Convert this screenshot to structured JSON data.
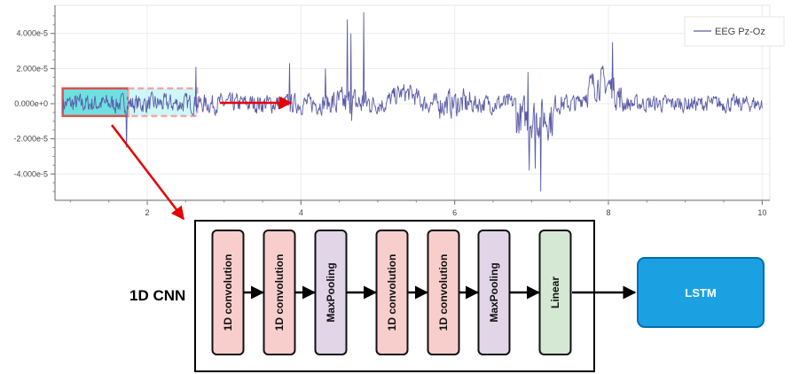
{
  "chart_data": {
    "type": "line",
    "series": [
      {
        "name": "EEG Pz-Oz"
      }
    ],
    "xlim": [
      0.8,
      10.1
    ],
    "ylim": [
      -5.5e-05,
      5.6e-05
    ],
    "x_ticks": [
      2,
      4,
      6,
      8,
      10
    ],
    "x_tick_labels": [
      "2",
      "4",
      "6",
      "8",
      "10"
    ],
    "y_ticks": [
      4e-05,
      2e-05,
      0,
      -2e-05,
      -4e-05
    ],
    "y_tick_labels": [
      "4.000e-5",
      "2.000e-5",
      "0.000e+0",
      "-2.000e-5",
      "-4.000e-5"
    ],
    "grid": true,
    "legend_position": "top-right",
    "line_color": "#5b5ba8",
    "signal_x_range": [
      0.9,
      10.0
    ],
    "peaks": [
      {
        "x": 4.82,
        "y": 5.2e-05
      },
      {
        "x": 4.6,
        "y": 4.8e-05
      },
      {
        "x": 4.65,
        "y": 4e-05
      },
      {
        "x": 7.12,
        "y": -5e-05
      },
      {
        "x": 7.05,
        "y": -3.7e-05
      },
      {
        "x": 6.97,
        "y": -3.8e-05
      },
      {
        "x": 8.05,
        "y": 3.5e-05
      },
      {
        "x": 1.73,
        "y": -2.5e-05
      },
      {
        "x": 2.63,
        "y": 2.1e-05
      },
      {
        "x": 3.85,
        "y": 2.3e-05
      },
      {
        "x": 6.95,
        "y": 1.8e-05
      },
      {
        "x": 4.32,
        "y": 2e-05
      }
    ]
  },
  "windows": [
    {
      "x_range": [
        0.9,
        1.75
      ],
      "y_range": [
        -7e-06,
        8.7e-06
      ],
      "style": "solid",
      "fill": "#3fd6d6",
      "stroke": "#d9534f"
    },
    {
      "x_range": [
        1.75,
        2.65
      ],
      "y_range": [
        -7e-06,
        8.7e-06
      ],
      "style": "dashed",
      "fill": "#a8f0f0",
      "stroke": "#f0a8a8"
    }
  ],
  "diagram": {
    "cnn_label": "1D CNN",
    "blocks": [
      {
        "label": "1D convolution",
        "kind": "conv"
      },
      {
        "label": "1D convolution",
        "kind": "conv"
      },
      {
        "label": "MaxPooling",
        "kind": "pool"
      },
      {
        "label": "1D convolution",
        "kind": "conv"
      },
      {
        "label": "1D convolution",
        "kind": "conv"
      },
      {
        "label": "MaxPooling",
        "kind": "pool"
      },
      {
        "label": "Linear",
        "kind": "linear"
      }
    ],
    "lstm_label": "LSTM",
    "colors": {
      "conv": "#f8cecc",
      "pool": "#e1d5e7",
      "linear": "#d5e8d4",
      "lstm": "#1ba1e2",
      "lstm_border": "#006eaf",
      "arrow_red": "#e50000"
    }
  }
}
